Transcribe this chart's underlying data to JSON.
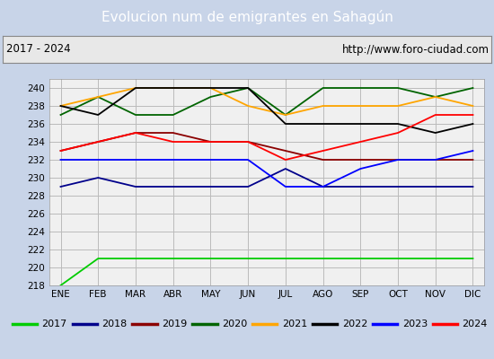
{
  "title": "Evolucion num de emigrantes en Sahagún",
  "title_bg": "#4d8bc9",
  "subtitle_left": "2017 - 2024",
  "subtitle_right": "http://www.foro-ciudad.com",
  "months": [
    "ENE",
    "FEB",
    "MAR",
    "ABR",
    "MAY",
    "JUN",
    "JUL",
    "AGO",
    "SEP",
    "OCT",
    "NOV",
    "DIC"
  ],
  "ylim": [
    218,
    241
  ],
  "yticks": [
    218,
    220,
    222,
    224,
    226,
    228,
    230,
    232,
    234,
    236,
    238,
    240
  ],
  "series": {
    "2017": {
      "color": "#00cc00",
      "data": [
        218,
        221,
        221,
        221,
        221,
        221,
        221,
        221,
        221,
        221,
        221,
        221
      ]
    },
    "2018": {
      "color": "#00008b",
      "data": [
        229,
        230,
        229,
        229,
        229,
        229,
        231,
        229,
        229,
        229,
        229,
        229
      ]
    },
    "2019": {
      "color": "#8b0000",
      "data": [
        233,
        234,
        235,
        235,
        234,
        234,
        233,
        232,
        232,
        232,
        232,
        232
      ]
    },
    "2020": {
      "color": "#006400",
      "data": [
        237,
        239,
        237,
        237,
        239,
        240,
        237,
        240,
        240,
        240,
        239,
        240
      ]
    },
    "2021": {
      "color": "#ffa500",
      "data": [
        238,
        239,
        240,
        240,
        240,
        238,
        237,
        238,
        238,
        238,
        239,
        238
      ]
    },
    "2022": {
      "color": "#000000",
      "data": [
        238,
        237,
        240,
        240,
        240,
        240,
        236,
        236,
        236,
        236,
        235,
        236
      ]
    },
    "2023": {
      "color": "#0000ff",
      "data": [
        232,
        232,
        232,
        232,
        232,
        232,
        229,
        229,
        231,
        232,
        232,
        233
      ]
    },
    "2024": {
      "color": "#ff0000",
      "data": [
        233,
        234,
        235,
        234,
        234,
        234,
        232,
        233,
        234,
        235,
        237,
        237
      ]
    }
  },
  "legend_order": [
    "2017",
    "2018",
    "2019",
    "2020",
    "2021",
    "2022",
    "2023",
    "2024"
  ],
  "bg_plot": "#f0f0f0",
  "bg_figure": "#c8d4e8",
  "grid_color": "#bbbbbb",
  "subtitle_bg": "#e8e8e8"
}
